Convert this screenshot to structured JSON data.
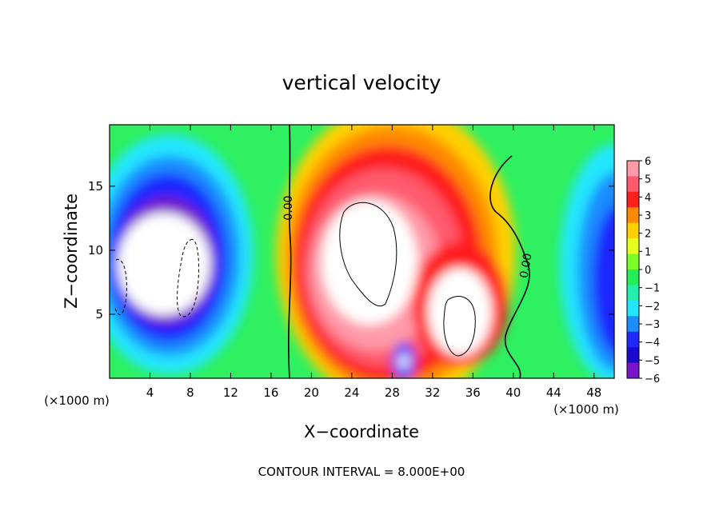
{
  "chart_data": {
    "type": "heatmap",
    "title": "vertical velocity",
    "xlabel": "X−coordinate",
    "ylabel": "Z−coordinate",
    "x_unit_label_left": "(×1000 m)",
    "x_unit_label_right": "(×1000 m)",
    "footer": "CONTOUR INTERVAL = 8.000E+00",
    "xlim": [
      0,
      50
    ],
    "ylim": [
      0,
      19.8
    ],
    "x_ticks": [
      4,
      8,
      12,
      16,
      20,
      24,
      28,
      32,
      36,
      40,
      44,
      48
    ],
    "x_tick_labels": [
      "4",
      "8",
      "12",
      "16",
      "20",
      "24",
      "28",
      "32",
      "36",
      "40",
      "44",
      "48"
    ],
    "y_ticks": [
      5,
      10,
      15
    ],
    "y_tick_labels": [
      "5",
      "10",
      "15"
    ],
    "contour_labels": [
      "0.00",
      "0.00"
    ],
    "colorbar": {
      "range": [
        -6,
        6
      ],
      "tick_labels": [
        "6",
        "5",
        "4",
        "3",
        "2",
        "1",
        "0",
        "−1",
        "−2",
        "−3",
        "−4",
        "−5",
        "−6"
      ],
      "colors": [
        "#ff9aa8",
        "#ff5a6e",
        "#ff1f1f",
        "#ff8a00",
        "#ffd000",
        "#e8ff1e",
        "#7cff28",
        "#22ee55",
        "#22f0aa",
        "#22e6ff",
        "#1c8cff",
        "#1e28ff",
        "#1a0ad0",
        "#7a14c8"
      ]
    }
  }
}
